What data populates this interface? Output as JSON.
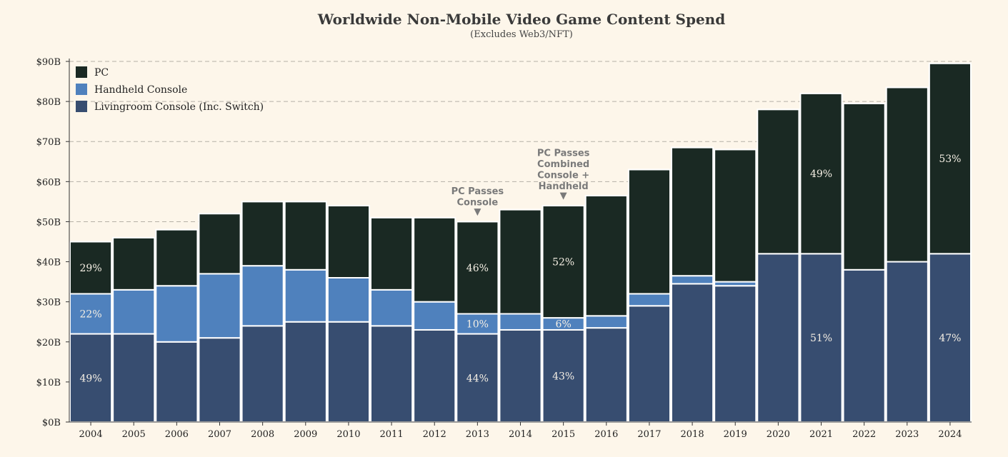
{
  "chart_data": {
    "type": "bar",
    "stacked": true,
    "title": "Worldwide Non-Mobile Video Game Content Spend",
    "subtitle": "(Excludes Web3/NFT)",
    "xlabel": "",
    "ylabel": "",
    "ylim": [
      0,
      90
    ],
    "y_ticks": [
      "$0B",
      "$10B",
      "$20B",
      "$30B",
      "$40B",
      "$50B",
      "$60B",
      "$70B",
      "$80B",
      "$90B"
    ],
    "grid": "horizontal dashed",
    "legend_position": "top-left",
    "categories": [
      "2004",
      "2005",
      "2006",
      "2007",
      "2008",
      "2009",
      "2010",
      "2011",
      "2012",
      "2013",
      "2014",
      "2015",
      "2016",
      "2017",
      "2018",
      "2019",
      "2020",
      "2021",
      "2022",
      "2023",
      "2024"
    ],
    "series": [
      {
        "name": "Livingroom Console (Inc. Switch)",
        "color": "#374d70",
        "values": [
          22,
          22,
          20,
          21,
          24,
          25,
          25,
          24,
          23,
          22,
          23,
          23,
          23.5,
          29,
          34.5,
          34,
          42,
          42,
          38,
          40,
          42
        ]
      },
      {
        "name": "Handheld Console",
        "color": "#4f81bd",
        "values": [
          10,
          11,
          14,
          16,
          15,
          13,
          11,
          9,
          7,
          5,
          4,
          3,
          3,
          3,
          2,
          1,
          0,
          0,
          0,
          0,
          0
        ]
      },
      {
        "name": "PC",
        "color": "#1a2923",
        "values": [
          13,
          13,
          14,
          15,
          16,
          17,
          18,
          18,
          21,
          23,
          26,
          28,
          30,
          31,
          32,
          33,
          36,
          40,
          41.5,
          43.5,
          47.5
        ]
      }
    ],
    "legend_order": [
      "PC",
      "Handheld Console",
      "Livingroom Console (Inc. Switch)"
    ],
    "data_labels": [
      {
        "category": "2004",
        "series": "Livingroom Console (Inc. Switch)",
        "text": "49%"
      },
      {
        "category": "2004",
        "series": "Handheld Console",
        "text": "22%"
      },
      {
        "category": "2004",
        "series": "PC",
        "text": "29%"
      },
      {
        "category": "2013",
        "series": "Livingroom Console (Inc. Switch)",
        "text": "44%"
      },
      {
        "category": "2013",
        "series": "Handheld Console",
        "text": "10%"
      },
      {
        "category": "2013",
        "series": "PC",
        "text": "46%"
      },
      {
        "category": "2015",
        "series": "Livingroom Console (Inc. Switch)",
        "text": "43%"
      },
      {
        "category": "2015",
        "series": "Handheld Console",
        "text": "6%"
      },
      {
        "category": "2015",
        "series": "PC",
        "text": "52%"
      },
      {
        "category": "2021",
        "series": "Livingroom Console (Inc. Switch)",
        "text": "51%"
      },
      {
        "category": "2021",
        "series": "PC",
        "text": "49%"
      },
      {
        "category": "2024",
        "series": "Livingroom Console (Inc. Switch)",
        "text": "47%"
      },
      {
        "category": "2024",
        "series": "PC",
        "text": "53%"
      }
    ],
    "annotations": [
      {
        "category": "2013",
        "lines": [
          "PC Passes",
          "Console"
        ],
        "marker": "▼"
      },
      {
        "category": "2015",
        "lines": [
          "PC Passes",
          "Combined",
          "Console +",
          "Handheld"
        ],
        "marker": "▼"
      }
    ]
  }
}
